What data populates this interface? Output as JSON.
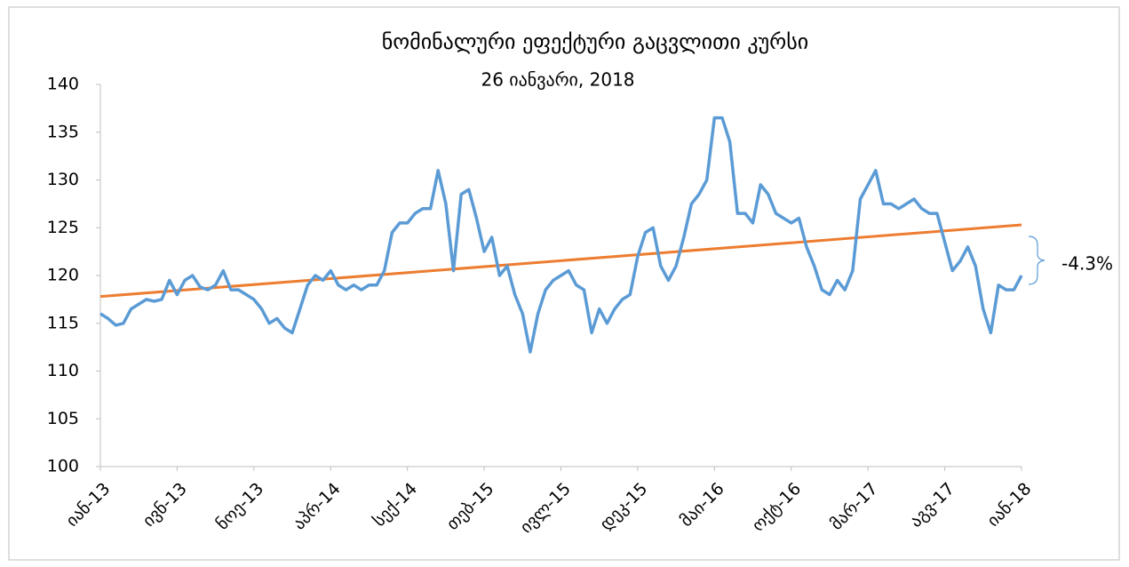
{
  "chart_data": {
    "type": "line",
    "title": "ნომინალური ეფექტური გაცვლითი კურსი",
    "subtitle": "26 იანვარი, 2018",
    "categories": [
      "იან-13",
      null,
      null,
      null,
      null,
      null,
      null,
      null,
      null,
      null,
      "ივნ-13",
      null,
      null,
      null,
      null,
      null,
      null,
      null,
      null,
      null,
      "ნოე-13",
      null,
      null,
      null,
      null,
      null,
      null,
      null,
      null,
      null,
      "აპრ-14",
      null,
      null,
      null,
      null,
      null,
      null,
      null,
      null,
      null,
      "სექ-14",
      null,
      null,
      null,
      null,
      null,
      null,
      null,
      null,
      null,
      "თებ-15",
      null,
      null,
      null,
      null,
      null,
      null,
      null,
      null,
      null,
      "ივლ-15",
      null,
      null,
      null,
      null,
      null,
      null,
      null,
      null,
      null,
      "დეკ-15",
      null,
      null,
      null,
      null,
      null,
      null,
      null,
      null,
      null,
      "მაი-16",
      null,
      null,
      null,
      null,
      null,
      null,
      null,
      null,
      null,
      "ოქტ-16",
      null,
      null,
      null,
      null,
      null,
      null,
      null,
      null,
      null,
      "მარ-17",
      null,
      null,
      null,
      null,
      null,
      null,
      null,
      null,
      null,
      "აგვ-17",
      null,
      null,
      null,
      null,
      null,
      null,
      null,
      null,
      null,
      "იან-18"
    ],
    "series": [
      {
        "name": "ნომინალური ეფექტური გაცვლითი კურსი",
        "color": "#5b9bd5",
        "values": [
          116,
          115.5,
          114.8,
          115,
          116.5,
          117,
          117.5,
          117.3,
          117.5,
          119.5,
          118,
          119.5,
          120,
          118.8,
          118.5,
          119,
          120.5,
          118.5,
          118.5,
          118,
          117.5,
          116.5,
          115,
          115.5,
          114.5,
          114,
          116.5,
          119,
          120,
          119.5,
          120.5,
          119,
          118.5,
          119,
          118.5,
          119,
          119,
          120.5,
          124.5,
          125.5,
          125.5,
          126.5,
          127,
          127,
          131,
          127.5,
          120.5,
          128.5,
          129,
          126,
          122.5,
          124,
          120,
          121,
          118,
          116,
          112,
          116,
          118.5,
          119.5,
          120,
          120.5,
          119,
          118.5,
          114,
          116.5,
          115,
          116.5,
          117.5,
          118,
          122,
          124.5,
          125,
          121,
          119.5,
          121,
          124,
          127.5,
          128.5,
          130,
          136.5,
          136.5,
          134,
          126.5,
          126.5,
          125.5,
          129.5,
          128.5,
          126.5,
          126,
          125.5,
          126,
          123,
          121,
          118.5,
          118,
          119.5,
          118.5,
          120.5,
          128,
          129.5,
          131,
          127.5,
          127.5,
          127,
          127.5,
          128,
          127,
          126.5,
          126.5,
          123.5,
          120.5,
          121.5,
          123,
          121,
          116.5,
          114,
          119,
          118.5,
          118.5,
          120
        ]
      }
    ],
    "trend": {
      "color": "#ed7d31",
      "start": 117.8,
      "end": 125.3
    },
    "annotation": "-4.3%",
    "ylim": [
      100,
      140
    ],
    "yticks": [
      100,
      105,
      110,
      115,
      120,
      125,
      130,
      135,
      140
    ],
    "grid": false
  }
}
